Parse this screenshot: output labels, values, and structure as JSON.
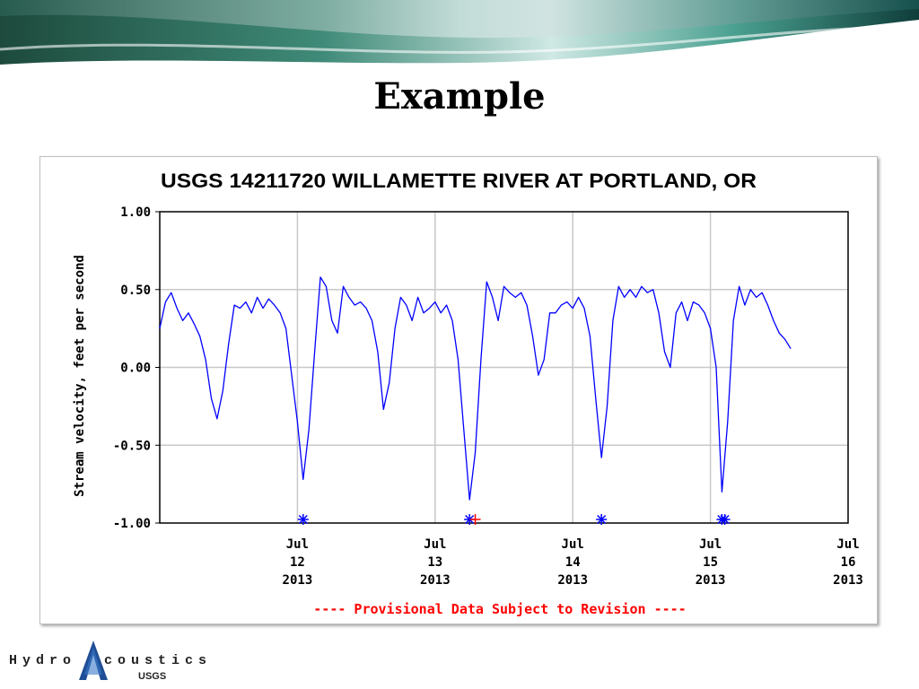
{
  "slide": {
    "title": "Example"
  },
  "logo": {
    "left_text": "Hydro",
    "right_text": "coustics",
    "agency": "USGS"
  },
  "chart_data": {
    "type": "line",
    "title": "USGS 14211720 WILLAMETTE RIVER AT PORTLAND, OR",
    "xlabel": "",
    "ylabel": "Stream velocity, feet per second",
    "ylim": [
      -1.0,
      1.0
    ],
    "yticks": [
      -1.0,
      -0.5,
      0.0,
      0.5,
      1.0
    ],
    "ytick_labels": [
      "-1.00",
      "-0.50",
      "0.00",
      "0.50",
      "1.00"
    ],
    "xlim": [
      "2013-07-11 00:00",
      "2013-07-16 00:00"
    ],
    "xticks": [
      {
        "date": "2013-07-12",
        "label": [
          "Jul",
          "12",
          "2013"
        ]
      },
      {
        "date": "2013-07-13",
        "label": [
          "Jul",
          "13",
          "2013"
        ]
      },
      {
        "date": "2013-07-14",
        "label": [
          "Jul",
          "14",
          "2013"
        ]
      },
      {
        "date": "2013-07-15",
        "label": [
          "Jul",
          "15",
          "2013"
        ]
      },
      {
        "date": "2013-07-16",
        "label": [
          "Jul",
          "16",
          "2013"
        ]
      }
    ],
    "grid": true,
    "line_color": "#0000ff",
    "series": [
      {
        "points": [
          [
            "2013-07-11 00:00",
            0.25
          ],
          [
            "2013-07-11 01:00",
            0.42
          ],
          [
            "2013-07-11 02:00",
            0.48
          ],
          [
            "2013-07-11 03:00",
            0.38
          ],
          [
            "2013-07-11 04:00",
            0.3
          ],
          [
            "2013-07-11 05:00",
            0.35
          ],
          [
            "2013-07-11 06:00",
            0.28
          ],
          [
            "2013-07-11 07:00",
            0.2
          ],
          [
            "2013-07-11 08:00",
            0.05
          ],
          [
            "2013-07-11 09:00",
            -0.2
          ],
          [
            "2013-07-11 10:00",
            -0.33
          ],
          [
            "2013-07-11 11:00",
            -0.15
          ],
          [
            "2013-07-11 12:00",
            0.15
          ],
          [
            "2013-07-11 13:00",
            0.4
          ],
          [
            "2013-07-11 14:00",
            0.38
          ],
          [
            "2013-07-11 15:00",
            0.42
          ],
          [
            "2013-07-11 16:00",
            0.35
          ],
          [
            "2013-07-11 17:00",
            0.45
          ],
          [
            "2013-07-11 18:00",
            0.38
          ],
          [
            "2013-07-11 19:00",
            0.44
          ],
          [
            "2013-07-11 20:00",
            0.4
          ],
          [
            "2013-07-11 21:00",
            0.35
          ],
          [
            "2013-07-11 22:00",
            0.25
          ],
          [
            "2013-07-11 23:00",
            -0.05
          ],
          [
            "2013-07-12 00:00",
            -0.35
          ],
          [
            "2013-07-12 01:00",
            -0.72
          ],
          [
            "2013-07-12 02:00",
            -0.4
          ],
          [
            "2013-07-12 03:00",
            0.1
          ],
          [
            "2013-07-12 04:00",
            0.58
          ],
          [
            "2013-07-12 05:00",
            0.52
          ],
          [
            "2013-07-12 06:00",
            0.3
          ],
          [
            "2013-07-12 07:00",
            0.22
          ],
          [
            "2013-07-12 08:00",
            0.52
          ],
          [
            "2013-07-12 09:00",
            0.45
          ],
          [
            "2013-07-12 10:00",
            0.4
          ],
          [
            "2013-07-12 11:00",
            0.42
          ],
          [
            "2013-07-12 12:00",
            0.38
          ],
          [
            "2013-07-12 13:00",
            0.3
          ],
          [
            "2013-07-12 14:00",
            0.1
          ],
          [
            "2013-07-12 15:00",
            -0.27
          ],
          [
            "2013-07-12 16:00",
            -0.1
          ],
          [
            "2013-07-12 17:00",
            0.25
          ],
          [
            "2013-07-12 18:00",
            0.45
          ],
          [
            "2013-07-12 19:00",
            0.4
          ],
          [
            "2013-07-12 20:00",
            0.3
          ],
          [
            "2013-07-12 21:00",
            0.45
          ],
          [
            "2013-07-12 22:00",
            0.35
          ],
          [
            "2013-07-12 23:00",
            0.38
          ],
          [
            "2013-07-13 00:00",
            0.42
          ],
          [
            "2013-07-13 01:00",
            0.35
          ],
          [
            "2013-07-13 02:00",
            0.4
          ],
          [
            "2013-07-13 03:00",
            0.3
          ],
          [
            "2013-07-13 04:00",
            0.05
          ],
          [
            "2013-07-13 05:00",
            -0.4
          ],
          [
            "2013-07-13 06:00",
            -0.85
          ],
          [
            "2013-07-13 07:00",
            -0.55
          ],
          [
            "2013-07-13 08:00",
            0.05
          ],
          [
            "2013-07-13 09:00",
            0.55
          ],
          [
            "2013-07-13 10:00",
            0.45
          ],
          [
            "2013-07-13 11:00",
            0.3
          ],
          [
            "2013-07-13 12:00",
            0.52
          ],
          [
            "2013-07-13 13:00",
            0.48
          ],
          [
            "2013-07-13 14:00",
            0.45
          ],
          [
            "2013-07-13 15:00",
            0.48
          ],
          [
            "2013-07-13 16:00",
            0.4
          ],
          [
            "2013-07-13 17:00",
            0.2
          ],
          [
            "2013-07-13 18:00",
            -0.05
          ],
          [
            "2013-07-13 19:00",
            0.05
          ],
          [
            "2013-07-13 20:00",
            0.35
          ],
          [
            "2013-07-13 21:00",
            0.35
          ],
          [
            "2013-07-13 22:00",
            0.4
          ],
          [
            "2013-07-13 23:00",
            0.42
          ],
          [
            "2013-07-14 00:00",
            0.38
          ],
          [
            "2013-07-14 01:00",
            0.45
          ],
          [
            "2013-07-14 02:00",
            0.38
          ],
          [
            "2013-07-14 03:00",
            0.2
          ],
          [
            "2013-07-14 04:00",
            -0.2
          ],
          [
            "2013-07-14 05:00",
            -0.58
          ],
          [
            "2013-07-14 06:00",
            -0.25
          ],
          [
            "2013-07-14 07:00",
            0.3
          ],
          [
            "2013-07-14 08:00",
            0.52
          ],
          [
            "2013-07-14 09:00",
            0.45
          ],
          [
            "2013-07-14 10:00",
            0.5
          ],
          [
            "2013-07-14 11:00",
            0.45
          ],
          [
            "2013-07-14 12:00",
            0.52
          ],
          [
            "2013-07-14 13:00",
            0.48
          ],
          [
            "2013-07-14 14:00",
            0.5
          ],
          [
            "2013-07-14 15:00",
            0.35
          ],
          [
            "2013-07-14 16:00",
            0.1
          ],
          [
            "2013-07-14 17:00",
            0.0
          ],
          [
            "2013-07-14 18:00",
            0.35
          ],
          [
            "2013-07-14 19:00",
            0.42
          ],
          [
            "2013-07-14 20:00",
            0.3
          ],
          [
            "2013-07-14 21:00",
            0.42
          ],
          [
            "2013-07-14 22:00",
            0.4
          ],
          [
            "2013-07-14 23:00",
            0.35
          ],
          [
            "2013-07-15 00:00",
            0.25
          ],
          [
            "2013-07-15 01:00",
            0.0
          ],
          [
            "2013-07-15 02:00",
            -0.8
          ],
          [
            "2013-07-15 03:00",
            -0.35
          ],
          [
            "2013-07-15 04:00",
            0.3
          ],
          [
            "2013-07-15 05:00",
            0.52
          ],
          [
            "2013-07-15 06:00",
            0.4
          ],
          [
            "2013-07-15 07:00",
            0.5
          ],
          [
            "2013-07-15 08:00",
            0.45
          ],
          [
            "2013-07-15 09:00",
            0.48
          ],
          [
            "2013-07-15 10:00",
            0.4
          ],
          [
            "2013-07-15 11:00",
            0.3
          ],
          [
            "2013-07-15 12:00",
            0.22
          ],
          [
            "2013-07-15 13:00",
            0.18
          ],
          [
            "2013-07-15 14:00",
            0.12
          ]
        ]
      }
    ],
    "markers": [
      {
        "date": "2013-07-12 01:00",
        "symbol": "*",
        "color": "#0000ff"
      },
      {
        "date": "2013-07-13 06:00",
        "symbol": "*",
        "color": "#0000ff"
      },
      {
        "date": "2013-07-13 07:00",
        "symbol": "+",
        "color": "#ff0000"
      },
      {
        "date": "2013-07-14 05:00",
        "symbol": "*",
        "color": "#0000ff"
      },
      {
        "date": "2013-07-15 02:00",
        "symbol": "*",
        "color": "#0000ff"
      },
      {
        "date": "2013-07-15 02:30",
        "symbol": "*",
        "color": "#0000ff"
      }
    ],
    "footnote": "---- Provisional Data Subject to Revision ----",
    "footnote_color": "#ff0000"
  }
}
